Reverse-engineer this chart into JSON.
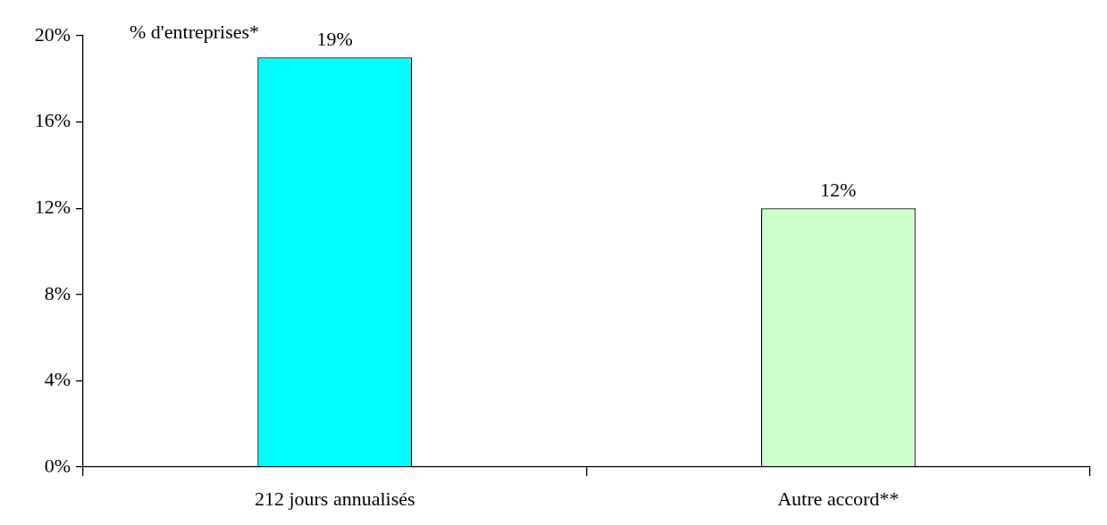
{
  "chart_data": {
    "type": "bar",
    "ylabel": "% d'entreprises*",
    "categories": [
      "212 jours annualisés",
      "Autre accord**"
    ],
    "values": [
      19,
      12
    ],
    "colors": [
      "#00ffff",
      "#ccffcc"
    ],
    "value_labels": [
      "19%",
      "12%"
    ],
    "ylim": [
      0,
      20
    ],
    "yticks": [
      {
        "value": 0,
        "label": "0%"
      },
      {
        "value": 4,
        "label": "4%"
      },
      {
        "value": 8,
        "label": "8%"
      },
      {
        "value": 12,
        "label": "12%"
      },
      {
        "value": 16,
        "label": "16%"
      },
      {
        "value": 20,
        "label": "20%"
      }
    ],
    "grid": false,
    "legend": false
  }
}
